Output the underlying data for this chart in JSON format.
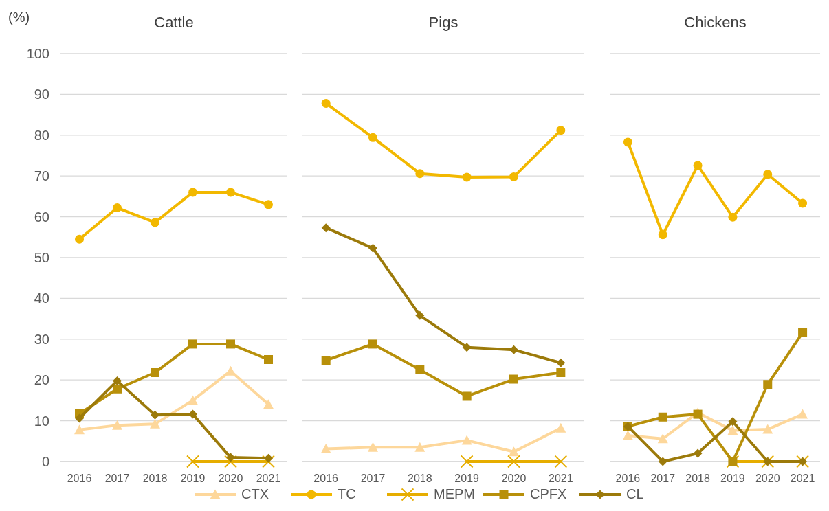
{
  "chart_data": [
    {
      "type": "line",
      "title": "Cattle",
      "ylabel": "(%)",
      "categories": [
        "2016",
        "2017",
        "2018",
        "2019",
        "2020",
        "2021"
      ],
      "ylim": [
        0,
        100
      ],
      "yticks": [
        0,
        10,
        20,
        30,
        40,
        50,
        60,
        70,
        80,
        90,
        100
      ],
      "grid": "y",
      "legend": "bottom",
      "series": [
        {
          "name": "CTX",
          "color": "#fdd79b",
          "marker": "triangle",
          "values": [
            7.8,
            8.9,
            9.2,
            15,
            22.2,
            14
          ]
        },
        {
          "name": "TC",
          "color": "#f2b800",
          "marker": "circle",
          "values": [
            54.5,
            62.2,
            58.6,
            66,
            66,
            63
          ]
        },
        {
          "name": "MEPM",
          "color": "#e6ad00",
          "marker": "cross",
          "values": [
            null,
            null,
            null,
            0,
            0,
            0
          ]
        },
        {
          "name": "CPFX",
          "color": "#b8900a",
          "marker": "square",
          "values": [
            11.7,
            17.8,
            21.8,
            28.8,
            28.8,
            25
          ]
        },
        {
          "name": "CL",
          "color": "#9c7a0a",
          "marker": "diamond",
          "values": [
            10.6,
            19.8,
            11.4,
            11.6,
            1,
            0.8
          ]
        }
      ]
    },
    {
      "type": "line",
      "title": "Pigs",
      "categories": [
        "2016",
        "2017",
        "2018",
        "2019",
        "2020",
        "2021"
      ],
      "ylim": [
        0,
        100
      ],
      "yticks": [
        0,
        10,
        20,
        30,
        40,
        50,
        60,
        70,
        80,
        90,
        100
      ],
      "tick_labels": "x",
      "grid": "y",
      "series": [
        {
          "color": "#fdd79b",
          "marker": "triangle",
          "values": [
            3.1,
            3.5,
            3.5,
            5.2,
            2.4,
            8.2
          ]
        },
        {
          "color": "#f2b800",
          "marker": "circle",
          "values": [
            87.8,
            79.4,
            70.6,
            69.7,
            69.8,
            81.2
          ]
        },
        {
          "color": "#e6ad00",
          "marker": "cross",
          "values": [
            null,
            null,
            null,
            0,
            0,
            0
          ]
        },
        {
          "color": "#b8900a",
          "marker": "square",
          "values": [
            24.8,
            28.8,
            22.5,
            16,
            20.2,
            21.8
          ]
        },
        {
          "color": "#9c7a0a",
          "marker": "diamond",
          "values": [
            57.3,
            52.3,
            35.8,
            28,
            27.4,
            24.2
          ]
        }
      ]
    },
    {
      "type": "line",
      "title": "Chickens",
      "categories": [
        "2016",
        "2017",
        "2018",
        "2019",
        "2020",
        "2021"
      ],
      "ylim": [
        0,
        100
      ],
      "yticks": [
        0,
        10,
        20,
        30,
        40,
        50,
        60,
        70,
        80,
        90,
        100
      ],
      "tick_labels": "x",
      "grid": "y",
      "series": [
        {
          "color": "#fdd79b",
          "marker": "triangle",
          "values": [
            6.4,
            5.6,
            12,
            7.6,
            7.9,
            11.6
          ]
        },
        {
          "color": "#f2b800",
          "marker": "circle",
          "values": [
            78.3,
            55.6,
            72.6,
            59.9,
            70.4,
            63.3
          ]
        },
        {
          "color": "#e6ad00",
          "marker": "cross",
          "values": [
            null,
            null,
            null,
            0,
            0,
            0
          ]
        },
        {
          "color": "#b8900a",
          "marker": "square",
          "values": [
            8.6,
            10.9,
            11.6,
            0,
            18.9,
            31.6
          ]
        },
        {
          "color": "#9c7a0a",
          "marker": "diamond",
          "values": [
            8.6,
            0,
            2,
            9.8,
            0,
            0
          ]
        }
      ]
    }
  ]
}
